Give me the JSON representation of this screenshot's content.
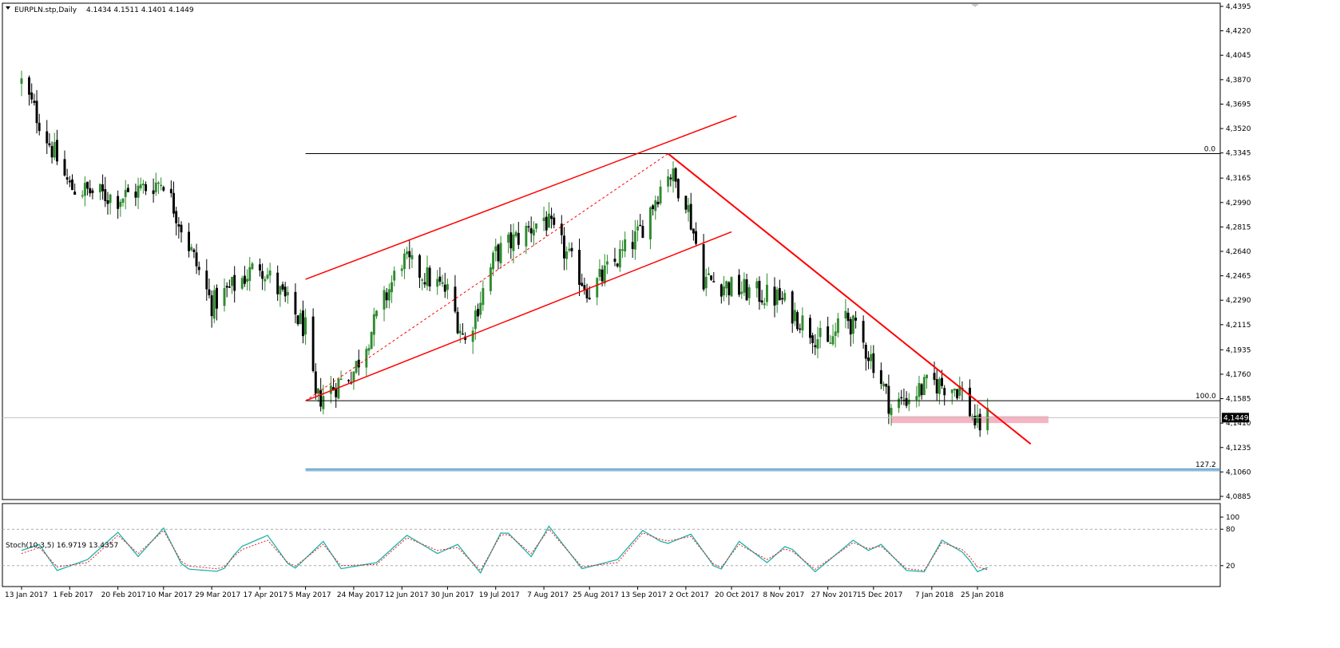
{
  "header": {
    "symbol": "EURPLN.stp,Daily",
    "ohlc": "4.1434 4.1511 4.1401 4.1449"
  },
  "colors": {
    "bull": "#2e8b2e",
    "bear": "#000000",
    "trend": "#ff0000",
    "channel": "#ff3b1f",
    "zone": "#f4a7b9",
    "fib": "#000000",
    "fib_ext": "#4a90c0",
    "stoch_main": "#20b2aa",
    "stoch_signal": "#e02020"
  },
  "chart_data": [
    {
      "type": "candlestick",
      "title": "EURPLN.stp,Daily",
      "ylim": [
        4.0885,
        4.4395
      ],
      "y_ticks": [
        "4.4395",
        "4.4220",
        "4.4045",
        "4.3870",
        "4.3695",
        "4.3520",
        "4.3345",
        "4.3165",
        "4.2990",
        "4.2815",
        "4.2640",
        "4.2465",
        "4.2290",
        "4.2115",
        "4.1935",
        "4.1760",
        "4.1585",
        "4.1410",
        "4.1235",
        "4.1060",
        "4.0885"
      ],
      "x_ticks": [
        "13 Jan 2017",
        "1 Feb 2017",
        "20 Feb 2017",
        "10 Mar 2017",
        "29 Mar 2017",
        "17 Apr 2017",
        "5 May 2017",
        "24 May 2017",
        "12 Jun 2017",
        "30 Jun 2017",
        "19 Jul 2017",
        "7 Aug 2017",
        "25 Aug 2017",
        "13 Sep 2017",
        "2 Oct 2017",
        "20 Oct 2017",
        "8 Nov 2017",
        "27 Nov 2017",
        "15 Dec 2017",
        "7 Jan 2018",
        "25 Jan 2018"
      ],
      "anchors": [
        {
          "date": "13 Jan 2017",
          "close": 4.385
        },
        {
          "date": "1 Feb 2017",
          "close": 4.31
        },
        {
          "date": "20 Feb 2017",
          "close": 4.302
        },
        {
          "date": "10 Mar 2017",
          "close": 4.315
        },
        {
          "date": "29 Mar 2017",
          "close": 4.226
        },
        {
          "date": "17 Apr 2017",
          "close": 4.255
        },
        {
          "date": "5 May 2017",
          "close": 4.208
        },
        {
          "date": "9 May 2017",
          "close": 4.157
        },
        {
          "date": "24 May 2017",
          "close": 4.178
        },
        {
          "date": "12 Jun 2017",
          "close": 4.258
        },
        {
          "date": "30 Jun 2017",
          "close": 4.235
        },
        {
          "date": "7 Jul 2017",
          "close": 4.199
        },
        {
          "date": "19 Jul 2017",
          "close": 4.262
        },
        {
          "date": "7 Aug 2017",
          "close": 4.288
        },
        {
          "date": "25 Aug 2017",
          "close": 4.235
        },
        {
          "date": "13 Sep 2017",
          "close": 4.275
        },
        {
          "date": "25 Sep 2017",
          "close": 4.322
        },
        {
          "date": "2 Oct 2017",
          "close": 4.302
        },
        {
          "date": "9 Oct 2017",
          "close": 4.245
        },
        {
          "date": "20 Oct 2017",
          "close": 4.238
        },
        {
          "date": "8 Nov 2017",
          "close": 4.23
        },
        {
          "date": "27 Nov 2017",
          "close": 4.195
        },
        {
          "date": "4 Dec 2017",
          "close": 4.219
        },
        {
          "date": "15 Dec 2017",
          "close": 4.185
        },
        {
          "date": "22 Dec 2017",
          "close": 4.152
        },
        {
          "date": "7 Jan 2018",
          "close": 4.17
        },
        {
          "date": "18 Jan 2018",
          "close": 4.166
        },
        {
          "date": "25 Jan 2018",
          "close": 4.138
        },
        {
          "date": "29 Jan 2018",
          "close": 4.145
        }
      ],
      "last_price": "4.1449",
      "fib_levels": [
        {
          "label": "0.0",
          "price": 4.334
        },
        {
          "label": "100.0",
          "price": 4.157
        },
        {
          "label": "127.2",
          "price": 4.108
        }
      ],
      "trendlines": [
        {
          "role": "channel-upper",
          "from": {
            "date": "5 May 2017",
            "price": 4.244
          },
          "to": {
            "date": "22 Oct 2017",
            "price": 4.361
          }
        },
        {
          "role": "channel-lower",
          "from": {
            "date": "5 May 2017",
            "price": 4.157
          },
          "to": {
            "date": "20 Oct 2017",
            "price": 4.278
          }
        },
        {
          "role": "channel-mid-dashed",
          "from": {
            "date": "5 May 2017",
            "price": 4.157
          },
          "to": {
            "date": "25 Sep 2017",
            "price": 4.334
          }
        },
        {
          "role": "downtrend",
          "from": {
            "date": "25 Sep 2017",
            "price": 4.334
          },
          "to": {
            "date": "15 Feb 2018",
            "price": 4.126
          }
        }
      ],
      "zone": {
        "from_date": "22 Dec 2017",
        "to_date": "22 Feb 2018",
        "price_top": 4.146,
        "price_bottom": 4.141
      }
    },
    {
      "type": "line",
      "title": "Stoch(10,3,5) 16.9719 13.4357",
      "ylim": [
        0,
        100
      ],
      "y_ticks": [
        "100",
        "80",
        "20",
        "0"
      ],
      "levels": [
        80,
        20
      ],
      "anchors": [
        {
          "date": "13 Jan 2017",
          "main": 45,
          "signal": 40
        },
        {
          "date": "20 Jan 2017",
          "main": 55,
          "signal": 50
        },
        {
          "date": "27 Jan 2017",
          "main": 12,
          "signal": 18
        },
        {
          "date": "8 Feb 2017",
          "main": 30,
          "signal": 25
        },
        {
          "date": "20 Feb 2017",
          "main": 75,
          "signal": 70
        },
        {
          "date": "28 Feb 2017",
          "main": 35,
          "signal": 40
        },
        {
          "date": "10 Mar 2017",
          "main": 82,
          "signal": 78
        },
        {
          "date": "18 Mar 2017",
          "main": 15,
          "signal": 20
        },
        {
          "date": "2 Apr 2017",
          "main": 10,
          "signal": 14
        },
        {
          "date": "9 Apr 2017",
          "main": 50,
          "signal": 45
        },
        {
          "date": "20 Apr 2017",
          "main": 70,
          "signal": 62
        },
        {
          "date": "30 Apr 2017",
          "main": 12,
          "signal": 16
        },
        {
          "date": "12 May 2017",
          "main": 60,
          "signal": 55
        },
        {
          "date": "19 May 2017",
          "main": 15,
          "signal": 20
        },
        {
          "date": "2 Jun 2017",
          "main": 25,
          "signal": 22
        },
        {
          "date": "14 Jun 2017",
          "main": 70,
          "signal": 66
        },
        {
          "date": "26 Jun 2017",
          "main": 40,
          "signal": 45
        },
        {
          "date": "4 Jul 2017",
          "main": 55,
          "signal": 50
        },
        {
          "date": "13 Jul 2017",
          "main": 8,
          "signal": 12
        },
        {
          "date": "22 Jul 2017",
          "main": 82,
          "signal": 78
        },
        {
          "date": "2 Aug 2017",
          "main": 35,
          "signal": 40
        },
        {
          "date": "9 Aug 2017",
          "main": 85,
          "signal": 80
        },
        {
          "date": "22 Aug 2017",
          "main": 15,
          "signal": 18
        },
        {
          "date": "5 Sep 2017",
          "main": 30,
          "signal": 25
        },
        {
          "date": "15 Sep 2017",
          "main": 78,
          "signal": 74
        },
        {
          "date": "24 Sep 2017",
          "main": 55,
          "signal": 60
        },
        {
          "date": "4 Oct 2017",
          "main": 72,
          "signal": 68
        },
        {
          "date": "15 Oct 2017",
          "main": 8,
          "signal": 12
        },
        {
          "date": "23 Oct 2017",
          "main": 60,
          "signal": 55
        },
        {
          "date": "3 Nov 2017",
          "main": 25,
          "signal": 30
        },
        {
          "date": "11 Nov 2017",
          "main": 55,
          "signal": 50
        },
        {
          "date": "22 Nov 2017",
          "main": 10,
          "signal": 14
        },
        {
          "date": "7 Dec 2017",
          "main": 62,
          "signal": 58
        },
        {
          "date": "13 Dec 2017",
          "main": 45,
          "signal": 48
        },
        {
          "date": "18 Dec 2017",
          "main": 55,
          "signal": 52
        },
        {
          "date": "28 Dec 2017",
          "main": 12,
          "signal": 15
        },
        {
          "date": "4 Jan 2018",
          "main": 10,
          "signal": 12
        },
        {
          "date": "11 Jan 2018",
          "main": 62,
          "signal": 58
        },
        {
          "date": "20 Jan 2018",
          "main": 40,
          "signal": 45
        },
        {
          "date": "25 Jan 2018",
          "main": 10,
          "signal": 18
        },
        {
          "date": "29 Jan 2018",
          "main": 16.9719,
          "signal": 13.4357
        }
      ]
    }
  ]
}
